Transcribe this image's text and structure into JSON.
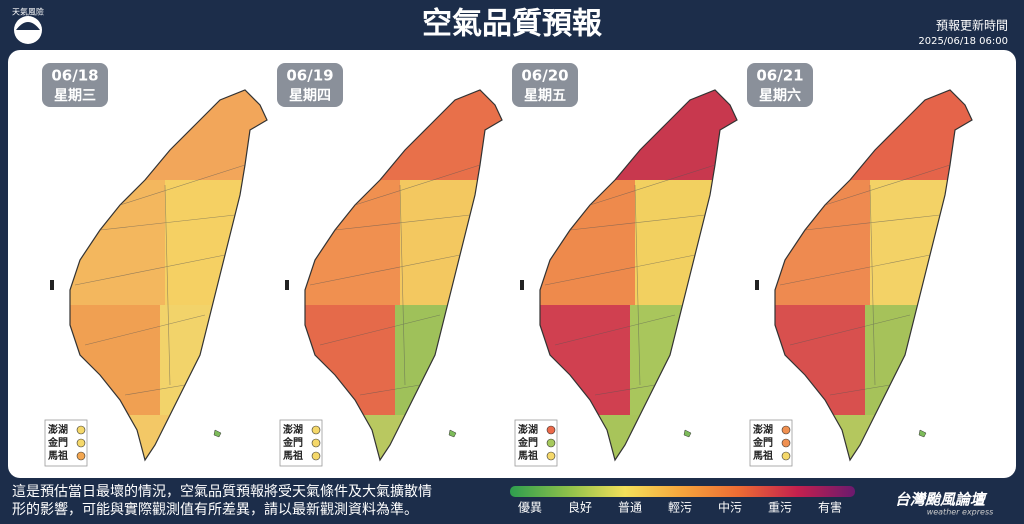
{
  "header": {
    "logo": "天氣風險",
    "title": "空氣品質預報",
    "update_label": "預報更新時間",
    "update_time": "2025/06/18 06:00"
  },
  "maps": [
    {
      "date": "06/18",
      "weekday": "星期三",
      "zone_colors": [
        "#f2a65a",
        "#f3b75e",
        "#f5d063",
        "#f0a052",
        "#f3c866",
        "#f2d36a"
      ],
      "islands": [
        {
          "name": "澎湖",
          "color": "#f5d86a"
        },
        {
          "name": "金門",
          "color": "#f5d86a"
        },
        {
          "name": "馬祖",
          "color": "#f3a650"
        }
      ]
    },
    {
      "date": "06/19",
      "weekday": "星期四",
      "zone_colors": [
        "#e8704a",
        "#f09050",
        "#f3c860",
        "#e56a4a",
        "#b9c860",
        "#9fc15a"
      ],
      "islands": [
        {
          "name": "澎湖",
          "color": "#f5d86a"
        },
        {
          "name": "金門",
          "color": "#f5d86a"
        },
        {
          "name": "馬祖",
          "color": "#f5d86a"
        }
      ]
    },
    {
      "date": "06/20",
      "weekday": "星期五",
      "zone_colors": [
        "#c8384e",
        "#ee8a4c",
        "#f2d060",
        "#d04050",
        "#a8c45a",
        "#a9c65c"
      ],
      "islands": [
        {
          "name": "澎湖",
          "color": "#ec6a4a"
        },
        {
          "name": "金門",
          "color": "#a6c95c"
        },
        {
          "name": "馬祖",
          "color": "#f5d86a"
        }
      ]
    },
    {
      "date": "06/21",
      "weekday": "星期六",
      "zone_colors": [
        "#e5644a",
        "#ee8a50",
        "#f3d266",
        "#d8504e",
        "#b4c75e",
        "#a6c25a"
      ],
      "islands": [
        {
          "name": "澎湖",
          "color": "#f09050"
        },
        {
          "name": "金門",
          "color": "#f09050"
        },
        {
          "name": "馬祖",
          "color": "#f5d86a"
        }
      ]
    }
  ],
  "footer": {
    "note": [
      "這是預估當日最壞的情況，空氣品質預報將受天氣條件及大氣擴散情",
      "形的影響，可能與實際觀測值有所差異，請以最新觀測資料為準。"
    ],
    "legend": [
      {
        "label": "優異",
        "color": "#2e9e4e"
      },
      {
        "label": "良好",
        "color": "#8cc04a"
      },
      {
        "label": "普通",
        "color": "#f3e05a"
      },
      {
        "label": "輕污",
        "color": "#f6a43c"
      },
      {
        "label": "中污",
        "color": "#ec6a34"
      },
      {
        "label": "重污",
        "color": "#c4204e"
      },
      {
        "label": "有害",
        "color": "#6b1a6e"
      }
    ],
    "brand": "台灣颱風論壇",
    "brand_sub": "weather express"
  }
}
